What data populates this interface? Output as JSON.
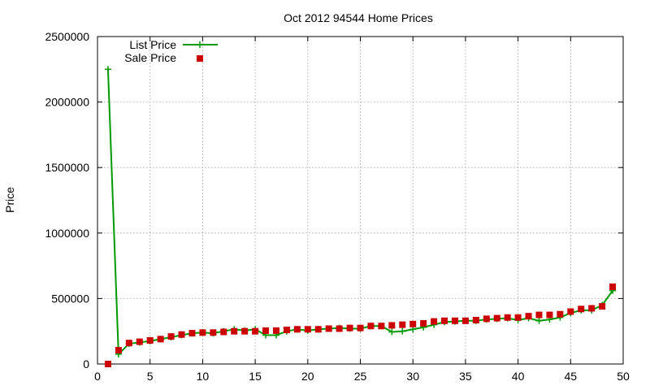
{
  "chart_data": {
    "type": "line",
    "title": "Oct 2012 94544 Home Prices",
    "xlabel": "",
    "ylabel": "Price",
    "xlim": [
      0,
      50
    ],
    "ylim": [
      0,
      2500000
    ],
    "xticks": [
      0,
      5,
      10,
      15,
      20,
      25,
      30,
      35,
      40,
      45,
      50
    ],
    "yticks": [
      0,
      500000,
      1000000,
      1500000,
      2000000,
      2500000
    ],
    "grid": true,
    "legend_position": "top-left",
    "series": [
      {
        "name": "List Price",
        "style": "line+cross",
        "color": "#009900",
        "x": [
          1,
          2,
          3,
          4,
          5,
          6,
          7,
          8,
          9,
          10,
          11,
          12,
          13,
          14,
          15,
          16,
          17,
          18,
          19,
          20,
          21,
          22,
          23,
          24,
          25,
          26,
          27,
          28,
          29,
          30,
          31,
          32,
          33,
          34,
          35,
          36,
          37,
          38,
          39,
          40,
          41,
          42,
          43,
          44,
          45,
          46,
          47,
          48,
          49
        ],
        "y": [
          2250000,
          75000,
          155000,
          165000,
          175000,
          190000,
          205000,
          220000,
          235000,
          240000,
          235000,
          250000,
          265000,
          255000,
          265000,
          220000,
          220000,
          250000,
          265000,
          255000,
          265000,
          270000,
          275000,
          270000,
          270000,
          290000,
          290000,
          245000,
          250000,
          265000,
          280000,
          300000,
          320000,
          325000,
          330000,
          330000,
          340000,
          345000,
          350000,
          335000,
          350000,
          330000,
          340000,
          355000,
          390000,
          410000,
          410000,
          450000,
          560000
        ]
      },
      {
        "name": "Sale Price",
        "style": "square",
        "color": "#cc0000",
        "x": [
          1,
          2,
          3,
          4,
          5,
          6,
          7,
          8,
          9,
          10,
          11,
          12,
          13,
          14,
          15,
          16,
          17,
          18,
          19,
          20,
          21,
          22,
          23,
          24,
          25,
          26,
          27,
          28,
          29,
          30,
          31,
          32,
          33,
          34,
          35,
          36,
          37,
          38,
          39,
          40,
          41,
          42,
          43,
          44,
          45,
          46,
          47,
          48,
          49
        ],
        "y": [
          0,
          105000,
          160000,
          170000,
          180000,
          190000,
          210000,
          225000,
          235000,
          240000,
          240000,
          245000,
          250000,
          250000,
          250000,
          255000,
          255000,
          260000,
          265000,
          265000,
          265000,
          270000,
          270000,
          275000,
          275000,
          290000,
          290000,
          295000,
          300000,
          305000,
          310000,
          325000,
          330000,
          330000,
          330000,
          335000,
          345000,
          350000,
          355000,
          355000,
          365000,
          375000,
          375000,
          380000,
          400000,
          420000,
          425000,
          440000,
          590000
        ]
      }
    ]
  }
}
